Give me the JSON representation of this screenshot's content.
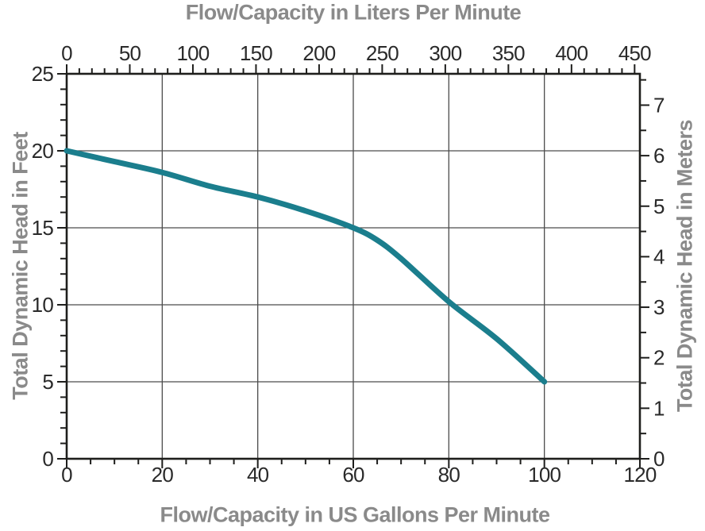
{
  "chart_data": {
    "type": "line",
    "description": "Pump performance curve: total dynamic head versus flow capacity",
    "x_bottom": {
      "label": "Flow/Capacity in US Gallons Per Minute",
      "min": 0,
      "max": 120,
      "major_ticks": [
        0,
        20,
        40,
        60,
        80,
        100,
        120
      ],
      "minor_step": 5,
      "gridlines": [
        20,
        40,
        60,
        80,
        100
      ]
    },
    "x_top": {
      "label": "Flow/Capacity in Liters Per Minute",
      "min": 0,
      "max": 454.2,
      "major_ticks": [
        0,
        50,
        100,
        150,
        200,
        250,
        300,
        350,
        400,
        450
      ],
      "minor_step": 10
    },
    "y_left": {
      "label": "Total Dynamic Head in Feet",
      "min": 0,
      "max": 25,
      "major_ticks": [
        0,
        5,
        10,
        15,
        20,
        25
      ],
      "minor_step": 1,
      "gridlines": [
        5,
        10,
        15,
        20
      ]
    },
    "y_right": {
      "label": "Total Dynamic Head in Meters",
      "min": 0,
      "max": 7.62,
      "major_ticks": [
        0,
        1,
        2,
        3,
        4,
        5,
        6,
        7
      ],
      "minor_step": 0.5
    },
    "series": [
      {
        "name": "pump-head-curve",
        "color": "#1b7e8d",
        "stroke_width": 7,
        "points": [
          [
            0,
            20
          ],
          [
            10,
            19.3
          ],
          [
            20,
            18.6
          ],
          [
            30,
            17.7
          ],
          [
            40,
            17
          ],
          [
            50,
            16.1
          ],
          [
            60,
            15
          ],
          [
            65,
            14.2
          ],
          [
            70,
            13
          ],
          [
            80,
            10.2
          ],
          [
            90,
            7.8
          ],
          [
            100,
            5
          ]
        ]
      }
    ],
    "colors": {
      "axis": "#1e1e1c",
      "grid": "#4c4c4c",
      "tick_label": "#2a2a2a",
      "title": "#8a8a8a",
      "background": "#ffffff"
    }
  }
}
